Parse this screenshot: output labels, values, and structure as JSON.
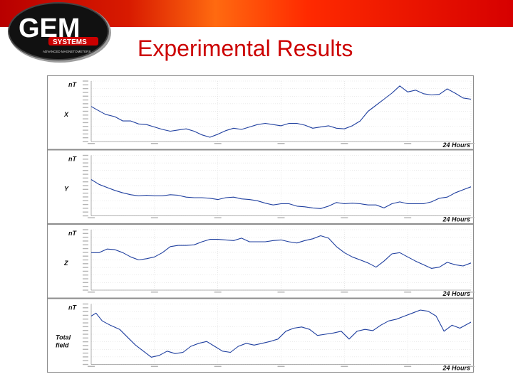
{
  "slide": {
    "title": "Experimental Results",
    "logo_text": "GEM",
    "logo_sub": "SYSTEMS",
    "logo_tagline": "ADVANCED MAGNETOMETERS",
    "colors": {
      "accent": "#cc0000",
      "trace": "#1f3f9f",
      "grid": "#d9d9d9"
    }
  },
  "chart_data": [
    {
      "type": "line",
      "ylabel": "nT",
      "series_label": "X",
      "time_label": "24 Hours",
      "xlim": [
        0,
        24
      ],
      "ylim": [
        0,
        1
      ],
      "grid": true,
      "x": [
        0,
        0.4,
        0.9,
        1.5,
        2,
        2.5,
        3,
        3.5,
        4,
        4.5,
        5,
        5.5,
        6,
        6.5,
        7,
        7.5,
        8,
        8.5,
        9,
        9.5,
        10,
        10.5,
        11,
        11.5,
        12,
        12.5,
        13,
        13.5,
        14,
        14.5,
        15,
        15.5,
        16,
        16.5,
        17,
        17.5,
        18,
        18.5,
        19,
        19.5,
        20,
        20.5,
        21,
        21.5,
        22,
        22.5,
        23,
        23.5,
        24
      ],
      "values": [
        0.58,
        0.52,
        0.45,
        0.41,
        0.34,
        0.34,
        0.29,
        0.28,
        0.24,
        0.2,
        0.17,
        0.19,
        0.21,
        0.17,
        0.11,
        0.07,
        0.12,
        0.18,
        0.22,
        0.2,
        0.24,
        0.28,
        0.3,
        0.28,
        0.26,
        0.3,
        0.3,
        0.27,
        0.22,
        0.24,
        0.26,
        0.22,
        0.21,
        0.26,
        0.34,
        0.5,
        0.6,
        0.7,
        0.8,
        0.92,
        0.82,
        0.85,
        0.79,
        0.77,
        0.78,
        0.87,
        0.8,
        0.72,
        0.7
      ]
    },
    {
      "type": "line",
      "ylabel": "nT",
      "series_label": "Y",
      "time_label": "24 Hours",
      "xlim": [
        0,
        24
      ],
      "ylim": [
        0,
        1
      ],
      "grid": true,
      "x": [
        0,
        0.5,
        1,
        1.5,
        2,
        2.5,
        3,
        3.5,
        4,
        4.5,
        5,
        5.5,
        6,
        6.5,
        7,
        7.5,
        8,
        8.5,
        9,
        9.5,
        10,
        10.5,
        11,
        11.5,
        12,
        12.5,
        13,
        13.5,
        14,
        14.5,
        15,
        15.5,
        16,
        16.5,
        17,
        17.5,
        18,
        18.5,
        19,
        19.5,
        20,
        20.5,
        21,
        21.5,
        22,
        22.5,
        23,
        23.5,
        24
      ],
      "values": [
        0.6,
        0.52,
        0.47,
        0.42,
        0.38,
        0.35,
        0.33,
        0.34,
        0.33,
        0.33,
        0.35,
        0.34,
        0.31,
        0.3,
        0.3,
        0.29,
        0.27,
        0.3,
        0.31,
        0.28,
        0.27,
        0.25,
        0.21,
        0.18,
        0.2,
        0.2,
        0.16,
        0.15,
        0.13,
        0.12,
        0.16,
        0.22,
        0.2,
        0.21,
        0.2,
        0.18,
        0.18,
        0.13,
        0.2,
        0.23,
        0.2,
        0.2,
        0.2,
        0.23,
        0.29,
        0.31,
        0.38,
        0.43,
        0.48
      ]
    },
    {
      "type": "line",
      "ylabel": "nT",
      "series_label": "Z",
      "time_label": "24 Hours",
      "xlim": [
        0,
        24
      ],
      "ylim": [
        0,
        1
      ],
      "grid": true,
      "x": [
        0,
        0.5,
        1,
        1.5,
        2,
        2.5,
        3,
        3.5,
        4,
        4.5,
        5,
        5.5,
        6,
        6.5,
        7,
        7.5,
        8,
        8.5,
        9,
        9.5,
        10,
        10.5,
        11,
        11.5,
        12,
        12.5,
        13,
        13.5,
        14,
        14.5,
        15,
        15.5,
        16,
        16.5,
        17,
        17.5,
        18,
        18.5,
        19,
        19.5,
        20,
        20.5,
        21,
        21.5,
        22,
        22.5,
        23,
        23.5,
        24
      ],
      "values": [
        0.62,
        0.62,
        0.68,
        0.67,
        0.62,
        0.55,
        0.5,
        0.52,
        0.55,
        0.62,
        0.72,
        0.74,
        0.74,
        0.75,
        0.8,
        0.84,
        0.84,
        0.83,
        0.82,
        0.86,
        0.8,
        0.8,
        0.8,
        0.82,
        0.83,
        0.8,
        0.78,
        0.82,
        0.85,
        0.9,
        0.86,
        0.72,
        0.62,
        0.55,
        0.5,
        0.45,
        0.38,
        0.48,
        0.6,
        0.62,
        0.55,
        0.48,
        0.42,
        0.36,
        0.38,
        0.46,
        0.42,
        0.4,
        0.45
      ]
    },
    {
      "type": "line",
      "ylabel": "nT",
      "series_label": "Total field",
      "time_label": "24 Hours",
      "xlim": [
        0,
        24
      ],
      "ylim": [
        0,
        1
      ],
      "grid": true,
      "x": [
        0,
        0.3,
        0.7,
        1.2,
        1.8,
        2.3,
        2.8,
        3.3,
        3.8,
        4.3,
        4.8,
        5.3,
        5.8,
        6.3,
        6.8,
        7.3,
        7.8,
        8.3,
        8.8,
        9.3,
        9.8,
        10.3,
        10.8,
        11.3,
        11.8,
        12.3,
        12.8,
        13.3,
        13.8,
        14.3,
        14.8,
        15.3,
        15.8,
        16.3,
        16.8,
        17.3,
        17.8,
        18.3,
        18.8,
        19.3,
        19.8,
        20.3,
        20.8,
        21.3,
        21.8,
        22.3,
        22.8,
        23.3,
        24
      ],
      "values": [
        0.8,
        0.85,
        0.72,
        0.65,
        0.58,
        0.45,
        0.32,
        0.22,
        0.12,
        0.15,
        0.22,
        0.18,
        0.2,
        0.3,
        0.35,
        0.38,
        0.3,
        0.22,
        0.2,
        0.3,
        0.35,
        0.32,
        0.35,
        0.38,
        0.42,
        0.55,
        0.6,
        0.62,
        0.58,
        0.48,
        0.5,
        0.52,
        0.55,
        0.42,
        0.55,
        0.58,
        0.56,
        0.65,
        0.72,
        0.75,
        0.8,
        0.85,
        0.9,
        0.88,
        0.8,
        0.55,
        0.65,
        0.6,
        0.7
      ]
    }
  ]
}
